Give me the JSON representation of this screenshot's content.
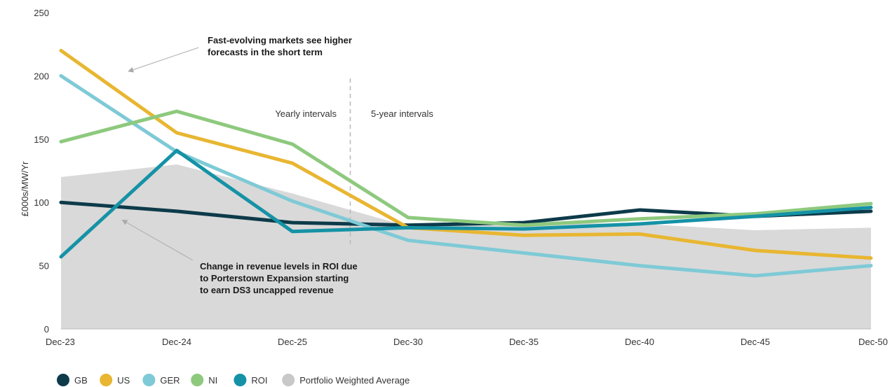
{
  "chart_data": {
    "type": "line",
    "ylabel": "£000s/MW/Yr",
    "xlabel": "",
    "ylim": [
      0,
      250
    ],
    "yticks": [
      0,
      50,
      100,
      150,
      200,
      250
    ],
    "categories": [
      "Dec-23",
      "Dec-24",
      "Dec-25",
      "Dec-30",
      "Dec-35",
      "Dec-40",
      "Dec-45",
      "Dec-50"
    ],
    "area": {
      "name": "Portfolio Weighted Average",
      "color": "#d9d9d9",
      "values": [
        120,
        130,
        107,
        81,
        84,
        83,
        78,
        80
      ]
    },
    "series": [
      {
        "name": "GB",
        "color": "#0d3b4a",
        "values": [
          100,
          93,
          84,
          82,
          84,
          94,
          89,
          93
        ]
      },
      {
        "name": "US",
        "color": "#e8b631",
        "values": [
          220,
          155,
          131,
          80,
          74,
          75,
          62,
          56
        ]
      },
      {
        "name": "GER",
        "color": "#7ecad6",
        "values": [
          200,
          140,
          101,
          70,
          60,
          50,
          42,
          50
        ]
      },
      {
        "name": "NI",
        "color": "#8ec97e",
        "values": [
          148,
          172,
          146,
          88,
          82,
          87,
          91,
          99
        ]
      },
      {
        "name": "ROI",
        "color": "#1592a6",
        "values": [
          57,
          141,
          77,
          80,
          79,
          83,
          89,
          96
        ]
      }
    ],
    "intervals": {
      "left": "Yearly intervals",
      "right": "5-year intervals"
    },
    "annotations": [
      {
        "lines": [
          "Fast-evolving markets see higher",
          "forecasts in the short term"
        ]
      },
      {
        "lines": [
          "Change in revenue levels in ROI due",
          "to Porterstown Expansion starting",
          "to earn DS3 uncapped revenue"
        ]
      }
    ],
    "legend": {
      "position": "bottom-left",
      "items": [
        {
          "label": "GB",
          "color": "#0d3b4a"
        },
        {
          "label": "US",
          "color": "#e8b631"
        },
        {
          "label": "GER",
          "color": "#7ecad6"
        },
        {
          "label": "NI",
          "color": "#8ec97e"
        },
        {
          "label": "ROI",
          "color": "#1592a6"
        },
        {
          "label": "Portfolio Weighted Average",
          "color": "#c8c8c8"
        }
      ]
    },
    "grid": false
  }
}
